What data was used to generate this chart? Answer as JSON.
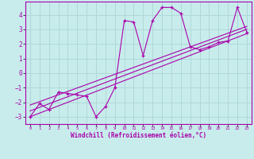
{
  "xlabel": "Windchill (Refroidissement éolien,°C)",
  "background_color": "#c8ecec",
  "grid_color": "#b0d8d8",
  "line_color": "#aa00aa",
  "xlim": [
    -0.5,
    23.5
  ],
  "ylim": [
    -3.5,
    4.9
  ],
  "xticks": [
    0,
    1,
    2,
    3,
    4,
    5,
    6,
    7,
    8,
    9,
    10,
    11,
    12,
    13,
    14,
    15,
    16,
    17,
    18,
    19,
    20,
    21,
    22,
    23
  ],
  "yticks": [
    -3,
    -2,
    -1,
    0,
    1,
    2,
    3,
    4
  ],
  "main_x": [
    0,
    1,
    2,
    3,
    4,
    5,
    6,
    7,
    8,
    9,
    10,
    11,
    12,
    13,
    14,
    15,
    16,
    17,
    18,
    19,
    20,
    21,
    22,
    23
  ],
  "main_y": [
    -3.0,
    -2.1,
    -2.5,
    -1.3,
    -1.4,
    -1.5,
    -1.6,
    -3.0,
    -2.3,
    -1.0,
    3.6,
    3.5,
    1.2,
    3.6,
    4.5,
    4.5,
    4.1,
    1.8,
    1.6,
    1.8,
    2.1,
    2.2,
    4.5,
    2.8
  ],
  "line1_x": [
    0,
    23
  ],
  "line1_y": [
    -3.0,
    2.7
  ],
  "line2_x": [
    0,
    23
  ],
  "line2_y": [
    -2.6,
    3.0
  ],
  "line3_x": [
    0,
    23
  ],
  "line3_y": [
    -2.2,
    3.2
  ]
}
